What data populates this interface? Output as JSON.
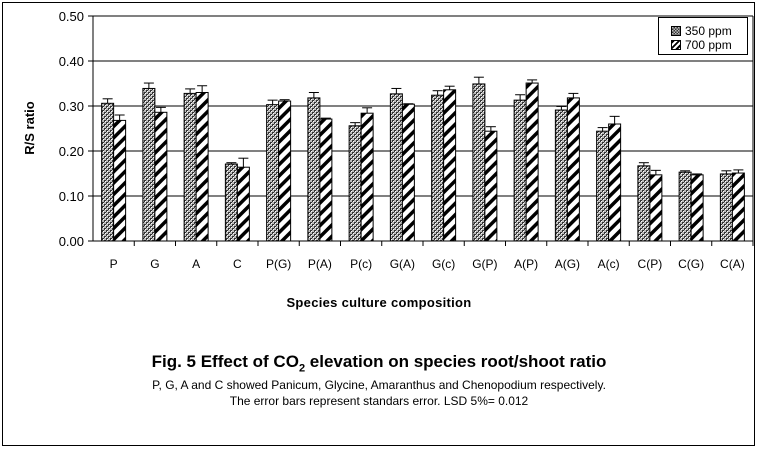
{
  "chart_data": {
    "type": "bar",
    "title_prefix": "Fig. 5 Effect of CO",
    "title_sub": "2",
    "title_suffix": " elevation on species root/shoot ratio",
    "caption_lines": [
      "P, G, A and C showed  Panicum, Glycine, Amaranthus and Chenopodium respectively.",
      "The error bars represent standars error. LSD 5%= 0.012"
    ],
    "xlabel": "Species culture composition",
    "ylabel": "R/S ratio",
    "ylim": [
      0,
      0.5
    ],
    "yticks": [
      "0.00",
      "0.10",
      "0.20",
      "0.30",
      "0.40",
      "0.50"
    ],
    "grid": true,
    "legend_position": "top-right",
    "categories": [
      "P",
      "G",
      "A",
      "C",
      "P(G)",
      "P(A)",
      "P(c)",
      "G(A)",
      "G(c)",
      "G(P)",
      "A(P)",
      "A(G)",
      "A(c)",
      "C(P)",
      "C(G)",
      "C(A)"
    ],
    "series": [
      {
        "name": "350 ppm",
        "pattern": "checker",
        "values": [
          0.306,
          0.339,
          0.328,
          0.171,
          0.303,
          0.318,
          0.256,
          0.327,
          0.324,
          0.349,
          0.313,
          0.291,
          0.244,
          0.167,
          0.153,
          0.149
        ],
        "errors": [
          0.01,
          0.012,
          0.01,
          0.003,
          0.01,
          0.012,
          0.007,
          0.012,
          0.01,
          0.015,
          0.012,
          0.008,
          0.008,
          0.007,
          0.003,
          0.007
        ]
      },
      {
        "name": "700 ppm",
        "pattern": "diagonal-stripes",
        "values": [
          0.268,
          0.286,
          0.33,
          0.164,
          0.311,
          0.271,
          0.284,
          0.304,
          0.336,
          0.244,
          0.351,
          0.318,
          0.26,
          0.147,
          0.147,
          0.151
        ],
        "errors": [
          0.012,
          0.011,
          0.015,
          0.02,
          0.003,
          0.002,
          0.012,
          0.001,
          0.008,
          0.01,
          0.007,
          0.01,
          0.017,
          0.01,
          0.002,
          0.007
        ]
      }
    ]
  }
}
